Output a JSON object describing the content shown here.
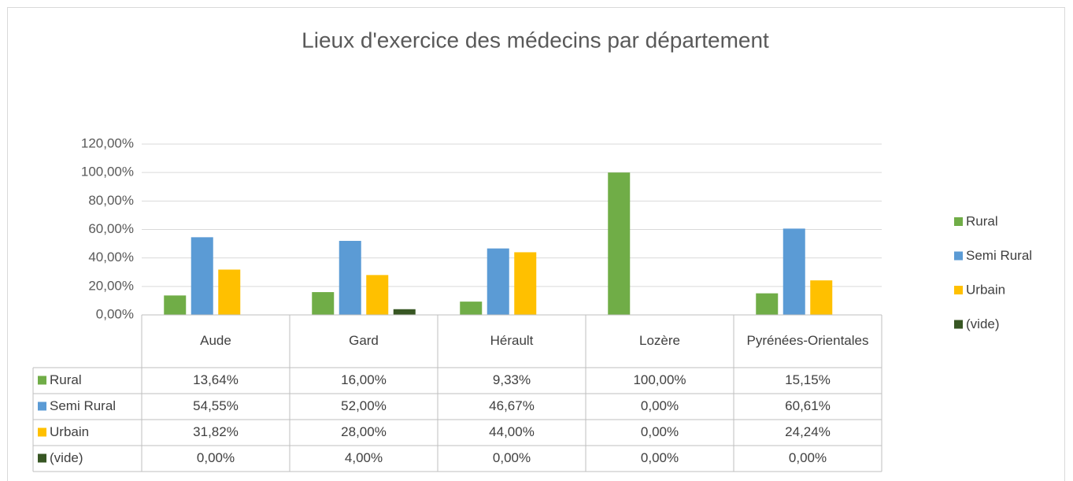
{
  "chart_data": {
    "type": "bar",
    "title": "Lieux d'exercice des médecins par département",
    "categories": [
      "Aude",
      "Gard",
      "Hérault",
      "Lozère",
      "Pyrénées-Orientales"
    ],
    "series": [
      {
        "name": "Rural",
        "color": "#70ad47",
        "values": [
          13.64,
          16.0,
          9.33,
          100.0,
          15.15
        ],
        "value_labels": [
          "13,64%",
          "16,00%",
          "9,33%",
          "100,00%",
          "15,15%"
        ]
      },
      {
        "name": "Semi Rural",
        "color": "#5b9bd5",
        "values": [
          54.55,
          52.0,
          46.67,
          0.0,
          60.61
        ],
        "value_labels": [
          "54,55%",
          "52,00%",
          "46,67%",
          "0,00%",
          "60,61%"
        ]
      },
      {
        "name": "Urbain",
        "color": "#ffc000",
        "values": [
          31.82,
          28.0,
          44.0,
          0.0,
          24.24
        ],
        "value_labels": [
          "31,82%",
          "28,00%",
          "44,00%",
          "0,00%",
          "24,24%"
        ]
      },
      {
        "name": "(vide)",
        "color": "#375623",
        "values": [
          0.0,
          4.0,
          0.0,
          0.0,
          0.0
        ],
        "value_labels": [
          "0,00%",
          "4,00%",
          "0,00%",
          "0,00%",
          "0,00%"
        ]
      }
    ],
    "ylim": [
      0,
      120
    ],
    "yticks": [
      {
        "value": 0,
        "label": "0,00%"
      },
      {
        "value": 20,
        "label": "20,00%"
      },
      {
        "value": 40,
        "label": "40,00%"
      },
      {
        "value": 60,
        "label": "60,00%"
      },
      {
        "value": 80,
        "label": "80,00%"
      },
      {
        "value": 100,
        "label": "100,00%"
      },
      {
        "value": 120,
        "label": "120,00%"
      }
    ],
    "grid": true,
    "legend": "right"
  }
}
